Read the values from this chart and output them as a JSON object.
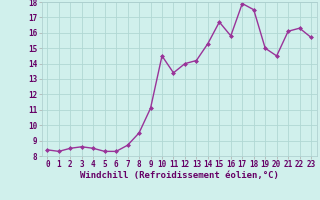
{
  "x": [
    0,
    1,
    2,
    3,
    4,
    5,
    6,
    7,
    8,
    9,
    10,
    11,
    12,
    13,
    14,
    15,
    16,
    17,
    18,
    19,
    20,
    21,
    22,
    23
  ],
  "y": [
    8.4,
    8.3,
    8.5,
    8.6,
    8.5,
    8.3,
    8.3,
    8.7,
    9.5,
    11.1,
    14.5,
    13.4,
    14.0,
    14.2,
    15.3,
    16.7,
    15.8,
    17.9,
    17.5,
    15.0,
    14.5,
    16.1,
    16.3,
    15.7
  ],
  "line_color": "#993399",
  "marker": "D",
  "marker_size": 2.0,
  "bg_color": "#d0f0ec",
  "grid_color": "#b0d8d4",
  "xlabel": "Windchill (Refroidissement éolien,°C)",
  "xlabel_fontsize": 6.5,
  "ylim": [
    8,
    18
  ],
  "xlim_min": -0.5,
  "xlim_max": 23.5,
  "yticks": [
    8,
    9,
    10,
    11,
    12,
    13,
    14,
    15,
    16,
    17,
    18
  ],
  "xticks": [
    0,
    1,
    2,
    3,
    4,
    5,
    6,
    7,
    8,
    9,
    10,
    11,
    12,
    13,
    14,
    15,
    16,
    17,
    18,
    19,
    20,
    21,
    22,
    23
  ],
  "tick_fontsize": 5.5,
  "linewidth": 1.0
}
